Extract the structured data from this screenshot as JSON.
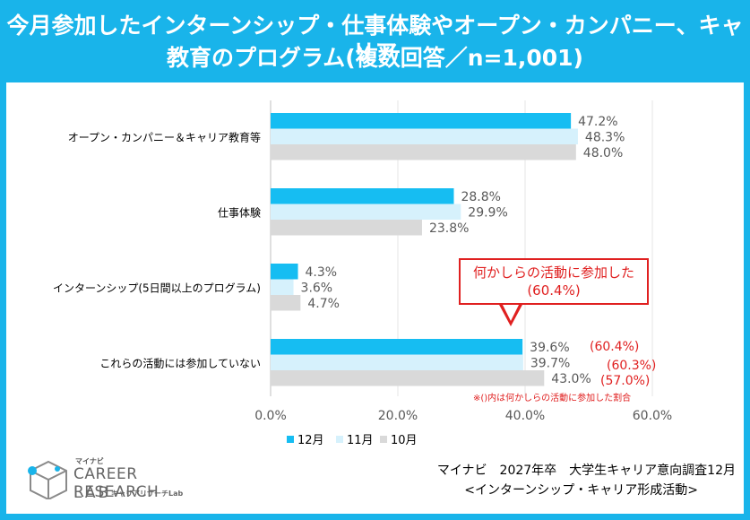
{
  "title": {
    "line1": "今月参加したインターンシップ・仕事体験やオープン・カンパニー、キャリア",
    "line2": "教育のプログラム(複数回答／n=1,001)"
  },
  "colors": {
    "accent": "#19b4ea",
    "series": [
      "#16bdf2",
      "#d6f1fc",
      "#d9d9d9"
    ],
    "note_red": "#e02020"
  },
  "chart_data": {
    "type": "bar",
    "orientation": "horizontal",
    "categories": [
      "オープン・カンパニー＆キャリア教育等",
      "仕事体験",
      "インターンシップ(5日間以上のプログラム)",
      "これらの活動には参加していない"
    ],
    "series": [
      {
        "name": "12月",
        "values": [
          47.2,
          28.8,
          4.3,
          39.6
        ]
      },
      {
        "name": "11月",
        "values": [
          48.3,
          29.9,
          3.6,
          39.7
        ]
      },
      {
        "name": "10月",
        "values": [
          48.0,
          23.8,
          4.7,
          43.0
        ]
      }
    ],
    "value_labels": [
      [
        "47.2%",
        "28.8%",
        "4.3%",
        "39.6%"
      ],
      [
        "48.3%",
        "29.9%",
        "3.6%",
        "39.7%"
      ],
      [
        "48.0%",
        "23.8%",
        "4.7%",
        "43.0%"
      ]
    ],
    "xlim": [
      0,
      60
    ],
    "xticks": [
      "0.0%",
      "20.0%",
      "40.0%",
      "60.0%"
    ],
    "xtick_values": [
      0,
      20,
      40,
      60
    ],
    "legend_position": "bottom",
    "grid": true,
    "annotations": {
      "paren_values": [
        "(60.4%)",
        "(60.3%)",
        "(57.0%)"
      ],
      "note": "※()内は何かしらの活動に参加した割合",
      "callout_line1": "何かしらの活動に参加した",
      "callout_line2": "(60.4%)"
    }
  },
  "source": {
    "line1": "マイナビ　2027年卒　大学生キャリア意向調査12月",
    "line2": "<インターンシップ・キャリア形成活動>"
  },
  "logo": {
    "small": "マイナビ",
    "line1": "CAREER RESEARCH",
    "line2": "LAB",
    "sub": "キャリアリサーチLab"
  }
}
